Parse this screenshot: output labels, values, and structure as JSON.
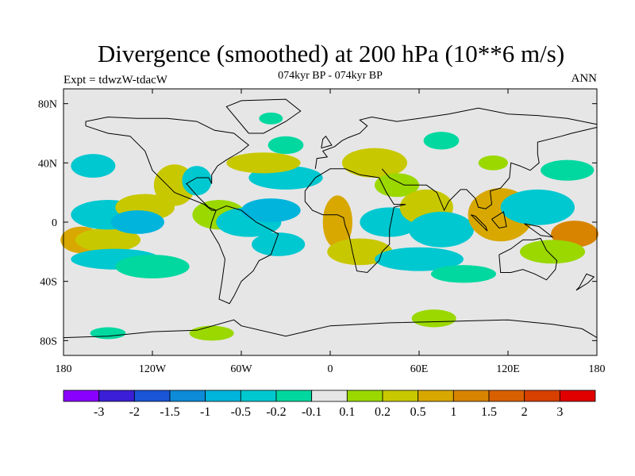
{
  "title": "Divergence (smoothed) at 200 hPa (10**6 m/s)",
  "left_string": "Expt = tdwzW-tdacW",
  "center_string": "074kyr BP - 074kyr BP",
  "right_string": "ANN",
  "map": {
    "projection": "cylindrical equidistant",
    "lon_range": [
      -180,
      180
    ],
    "lat_range": [
      -90,
      90
    ],
    "background_color": "#e6e6e6",
    "x_ticks": [
      {
        "lon": -180,
        "label": "180"
      },
      {
        "lon": -120,
        "label": "120W"
      },
      {
        "lon": -60,
        "label": "60W"
      },
      {
        "lon": 0,
        "label": "0"
      },
      {
        "lon": 60,
        "label": "60E"
      },
      {
        "lon": 120,
        "label": "120E"
      },
      {
        "lon": 180,
        "label": "180"
      }
    ],
    "y_ticks": [
      {
        "lat": 80,
        "label": "80N"
      },
      {
        "lat": 40,
        "label": "40N"
      },
      {
        "lat": 0,
        "label": "0"
      },
      {
        "lat": -40,
        "label": "40S"
      },
      {
        "lat": -80,
        "label": "80S"
      }
    ]
  },
  "colorbar": {
    "colors": [
      "#8a00ff",
      "#3a1fd6",
      "#1a55d8",
      "#0d8ad8",
      "#00b4dc",
      "#00c8d0",
      "#00d8a0",
      "#e6e6e6",
      "#9ad800",
      "#c8c800",
      "#d8a800",
      "#d88400",
      "#d86000",
      "#d84000",
      "#e00000"
    ],
    "labels": [
      "-3",
      "-2",
      "-1.5",
      "-1",
      "-0.5",
      "-0.2",
      "-0.1",
      "0.1",
      "0.2",
      "0.5",
      "1",
      "1.5",
      "2",
      "3"
    ]
  },
  "field_blobs": [
    {
      "lon": -168,
      "lat": -12,
      "rx": 14,
      "ry": 9,
      "color": "#d8a800"
    },
    {
      "lon": -150,
      "lat": -12,
      "rx": 22,
      "ry": 8,
      "color": "#c8c800"
    },
    {
      "lon": -145,
      "lat": -25,
      "rx": 30,
      "ry": 7,
      "color": "#00c8d0"
    },
    {
      "lon": -120,
      "lat": -30,
      "rx": 25,
      "ry": 8,
      "color": "#00d8a0"
    },
    {
      "lon": -150,
      "lat": 5,
      "rx": 25,
      "ry": 10,
      "color": "#00c8d0"
    },
    {
      "lon": -125,
      "lat": 10,
      "rx": 20,
      "ry": 9,
      "color": "#c8c800"
    },
    {
      "lon": -130,
      "lat": 0,
      "rx": 18,
      "ry": 8,
      "color": "#00b4dc"
    },
    {
      "lon": -160,
      "lat": 38,
      "rx": 15,
      "ry": 8,
      "color": "#00c8d0"
    },
    {
      "lon": -105,
      "lat": 25,
      "rx": 14,
      "ry": 14,
      "color": "#c8c800"
    },
    {
      "lon": -90,
      "lat": 28,
      "rx": 10,
      "ry": 10,
      "color": "#00c8d0"
    },
    {
      "lon": -75,
      "lat": 5,
      "rx": 18,
      "ry": 10,
      "color": "#9ad800"
    },
    {
      "lon": -55,
      "lat": 0,
      "rx": 22,
      "ry": 10,
      "color": "#00c8d0"
    },
    {
      "lon": -40,
      "lat": 8,
      "rx": 20,
      "ry": 8,
      "color": "#00b4dc"
    },
    {
      "lon": -30,
      "lat": 30,
      "rx": 25,
      "ry": 8,
      "color": "#00c8d0"
    },
    {
      "lon": -45,
      "lat": 40,
      "rx": 25,
      "ry": 7,
      "color": "#c8c800"
    },
    {
      "lon": -30,
      "lat": 52,
      "rx": 12,
      "ry": 6,
      "color": "#00d8a0"
    },
    {
      "lon": -40,
      "lat": 70,
      "rx": 8,
      "ry": 4,
      "color": "#00d8a0"
    },
    {
      "lon": -35,
      "lat": -15,
      "rx": 18,
      "ry": 8,
      "color": "#00c8d0"
    },
    {
      "lon": 5,
      "lat": 0,
      "rx": 10,
      "ry": 18,
      "color": "#d8a800"
    },
    {
      "lon": 20,
      "lat": -20,
      "rx": 22,
      "ry": 9,
      "color": "#c8c800"
    },
    {
      "lon": 30,
      "lat": 40,
      "rx": 22,
      "ry": 10,
      "color": "#c8c800"
    },
    {
      "lon": 45,
      "lat": 25,
      "rx": 15,
      "ry": 8,
      "color": "#9ad800"
    },
    {
      "lon": 40,
      "lat": 0,
      "rx": 20,
      "ry": 10,
      "color": "#00c8d0"
    },
    {
      "lon": 65,
      "lat": 10,
      "rx": 18,
      "ry": 12,
      "color": "#c8c800"
    },
    {
      "lon": 75,
      "lat": -5,
      "rx": 22,
      "ry": 12,
      "color": "#00c8d0"
    },
    {
      "lon": 60,
      "lat": -25,
      "rx": 30,
      "ry": 8,
      "color": "#00c8d0"
    },
    {
      "lon": 90,
      "lat": -35,
      "rx": 22,
      "ry": 6,
      "color": "#00d8a0"
    },
    {
      "lon": 70,
      "lat": -65,
      "rx": 15,
      "ry": 6,
      "color": "#9ad800"
    },
    {
      "lon": 75,
      "lat": 55,
      "rx": 12,
      "ry": 6,
      "color": "#00d8a0"
    },
    {
      "lon": 110,
      "lat": 40,
      "rx": 10,
      "ry": 5,
      "color": "#9ad800"
    },
    {
      "lon": 115,
      "lat": 5,
      "rx": 22,
      "ry": 18,
      "color": "#d8a800"
    },
    {
      "lon": 140,
      "lat": 10,
      "rx": 25,
      "ry": 12,
      "color": "#00c8d0"
    },
    {
      "lon": 165,
      "lat": -8,
      "rx": 16,
      "ry": 9,
      "color": "#d88400"
    },
    {
      "lon": 150,
      "lat": -20,
      "rx": 22,
      "ry": 8,
      "color": "#9ad800"
    },
    {
      "lon": 160,
      "lat": 35,
      "rx": 18,
      "ry": 7,
      "color": "#00d8a0"
    },
    {
      "lon": -150,
      "lat": -75,
      "rx": 12,
      "ry": 4,
      "color": "#00d8a0"
    },
    {
      "lon": -80,
      "lat": -75,
      "rx": 15,
      "ry": 5,
      "color": "#9ad800"
    }
  ]
}
